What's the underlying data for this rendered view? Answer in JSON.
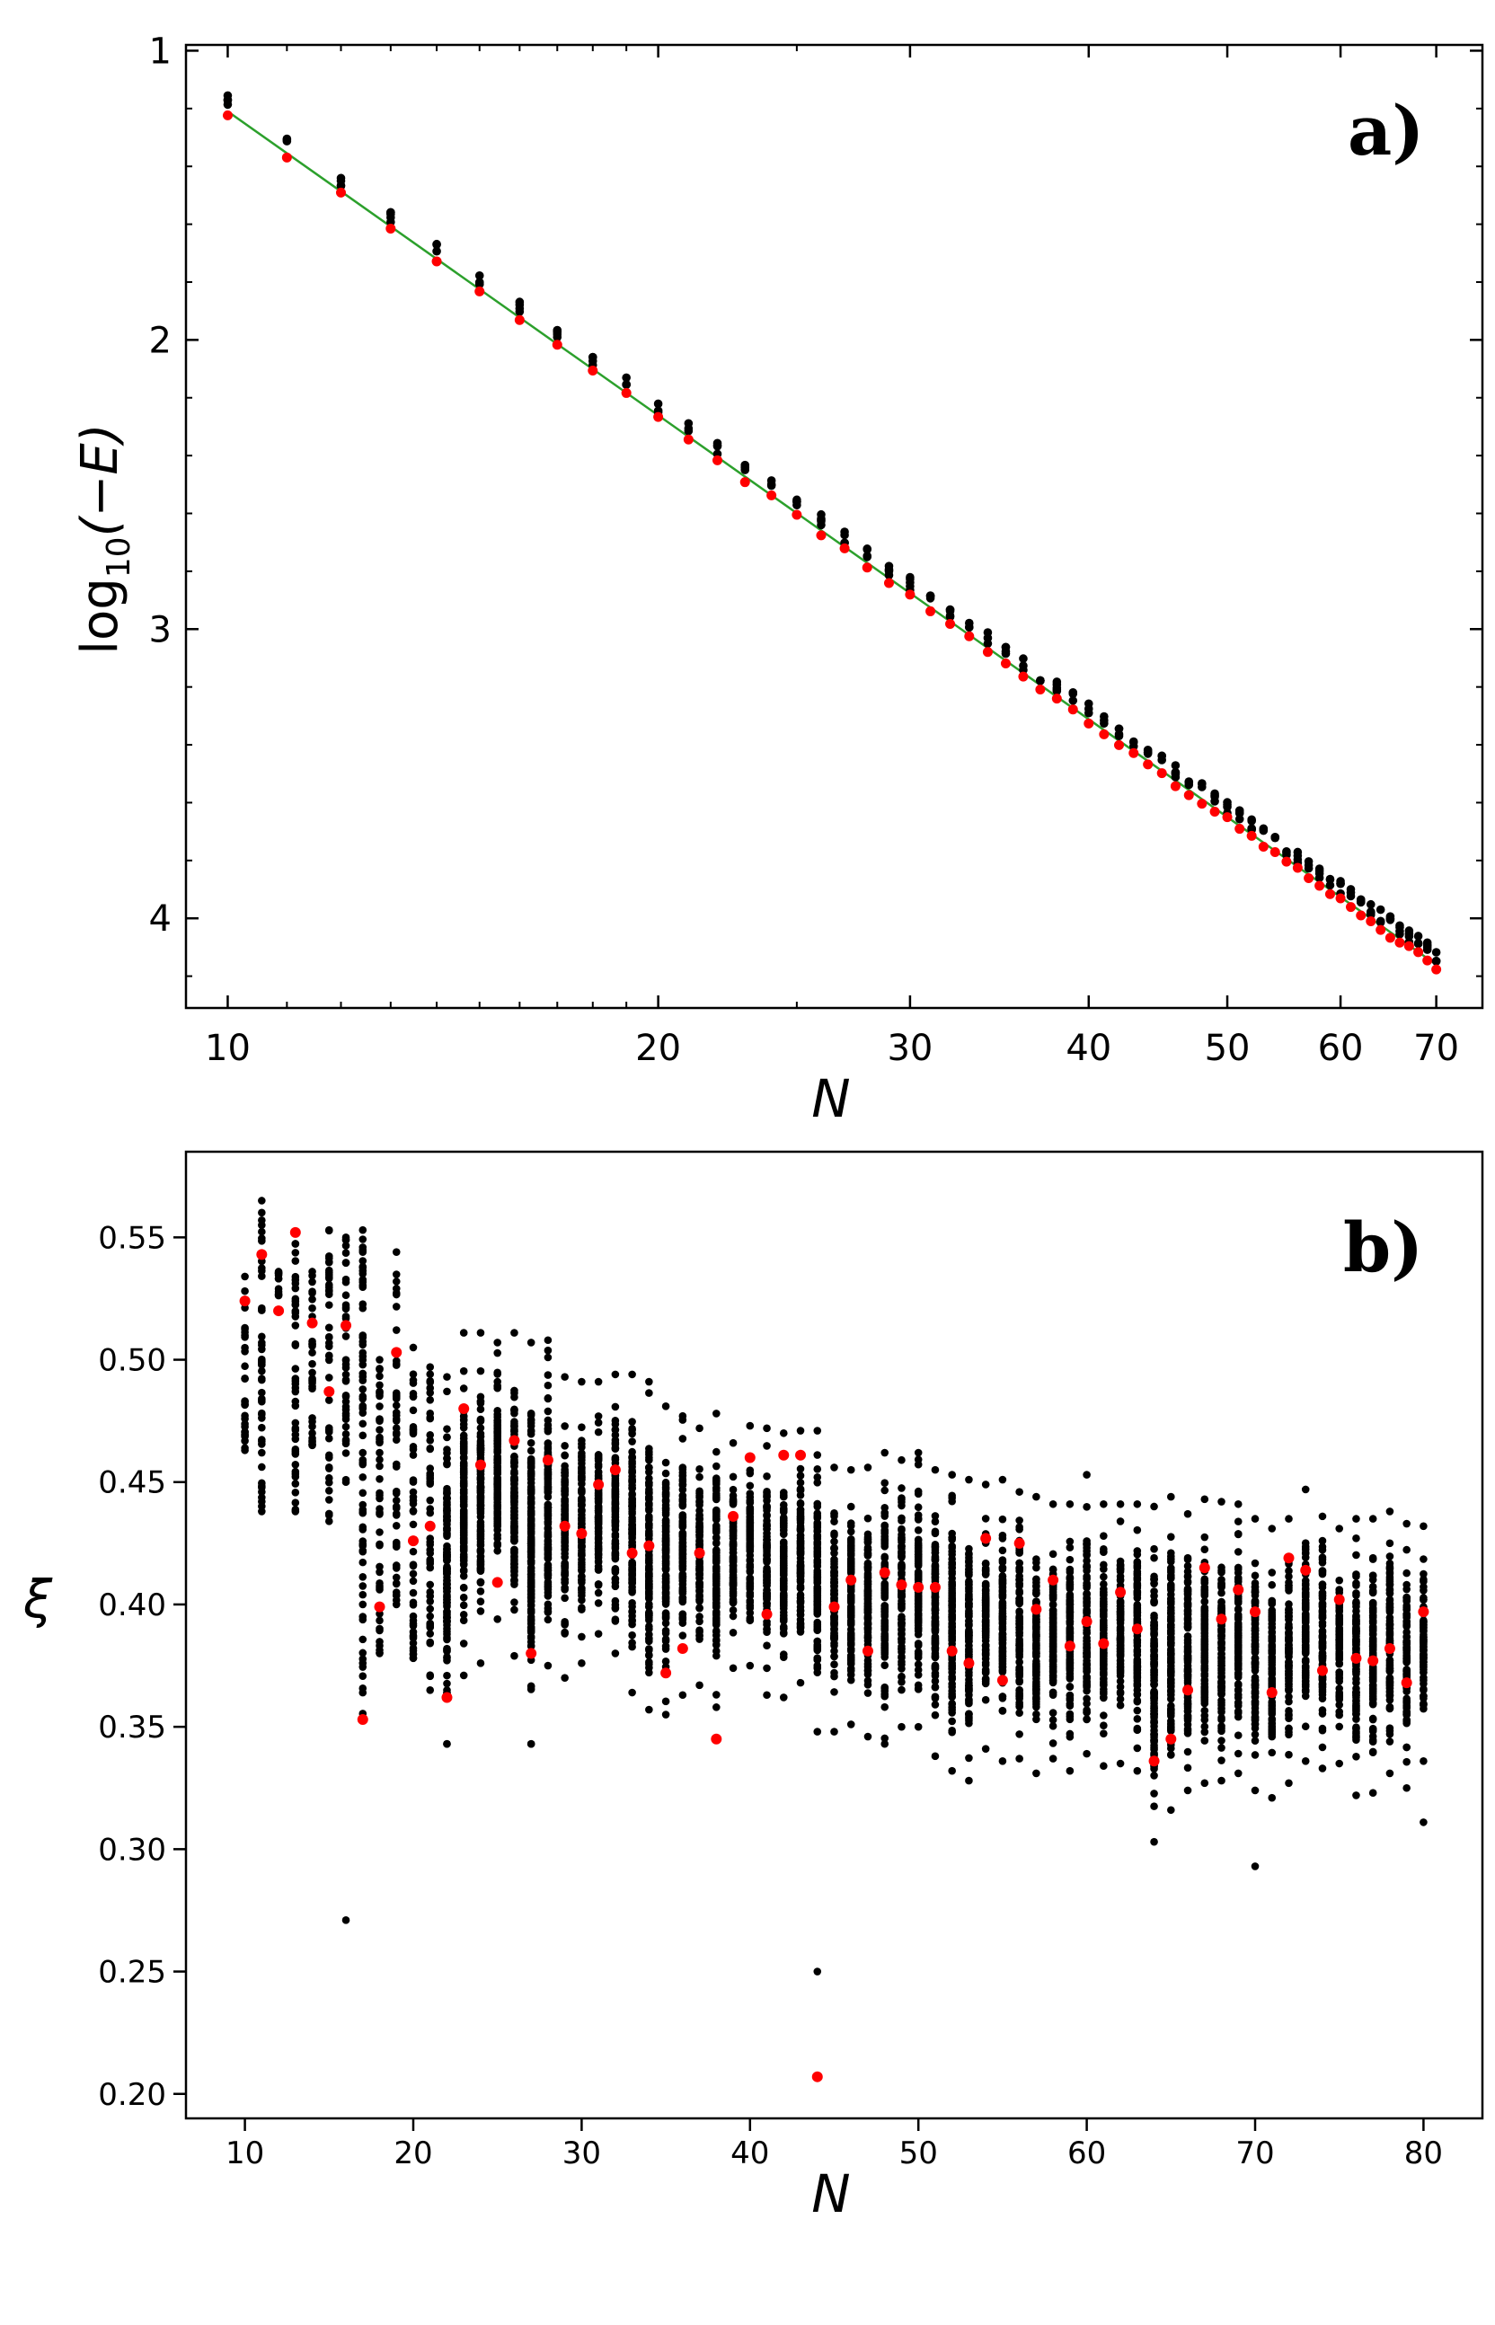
{
  "chart_data": [
    {
      "panel": "a)",
      "type": "scatter",
      "xscale": "log",
      "xlabel": "N",
      "ylabel_main": "log",
      "ylabel_sub": "10",
      "ylabel_rest": "(−E)",
      "xlim": [
        9.35,
        75.4
      ],
      "ylim": [
        4.31,
        0.98
      ],
      "y_inverted": true,
      "xticks": [
        10,
        20,
        30,
        40,
        50,
        60,
        70
      ],
      "xtick_labels": [
        "10",
        "20",
        "30",
        "40",
        "50",
        "60",
        "70"
      ],
      "yticks": [
        1,
        2,
        3,
        4
      ],
      "ytick_labels": [
        "1",
        "2",
        "3",
        "4"
      ],
      "fit_line": {
        "color": "#2ca02c",
        "from": [
          10,
          1.21
        ],
        "to": [
          70,
          4.16
        ]
      },
      "red_series_description": "one red point per N (10 to 70)",
      "black_series_description": "several black points per N clustered just above the red point",
      "point_colors": {
        "red": "#ff0000",
        "black": "#000000"
      }
    },
    {
      "panel": "b)",
      "type": "scatter",
      "xlabel": "N",
      "ylabel": "ξ",
      "xlim": [
        6.5,
        83.5
      ],
      "ylim": [
        0.19,
        0.585
      ],
      "xticks": [
        10,
        20,
        30,
        40,
        50,
        60,
        70,
        80
      ],
      "xtick_labels": [
        "10",
        "20",
        "30",
        "40",
        "50",
        "60",
        "70",
        "80"
      ],
      "yticks": [
        0.2,
        0.25,
        0.3,
        0.35,
        0.4,
        0.45,
        0.5,
        0.55
      ],
      "ytick_labels": [
        "0.20",
        "0.25",
        "0.30",
        "0.35",
        "0.40",
        "0.45",
        "0.50",
        "0.55"
      ],
      "red_points": [
        [
          10,
          0.524
        ],
        [
          11,
          0.543
        ],
        [
          12,
          0.52
        ],
        [
          13,
          0.552
        ],
        [
          14,
          0.515
        ],
        [
          15,
          0.487
        ],
        [
          16,
          0.514
        ],
        [
          17,
          0.353
        ],
        [
          18,
          0.399
        ],
        [
          19,
          0.503
        ],
        [
          20,
          0.426
        ],
        [
          21,
          0.432
        ],
        [
          22,
          0.362
        ],
        [
          23,
          0.48
        ],
        [
          24,
          0.457
        ],
        [
          25,
          0.409
        ],
        [
          26,
          0.467
        ],
        [
          27,
          0.38
        ],
        [
          28,
          0.459
        ],
        [
          29,
          0.432
        ],
        [
          30,
          0.429
        ],
        [
          31,
          0.449
        ],
        [
          32,
          0.455
        ],
        [
          33,
          0.421
        ],
        [
          34,
          0.424
        ],
        [
          35,
          0.372
        ],
        [
          36,
          0.382
        ],
        [
          37,
          0.421
        ],
        [
          38,
          0.345
        ],
        [
          39,
          0.436
        ],
        [
          40,
          0.46
        ],
        [
          41,
          0.396
        ],
        [
          42,
          0.461
        ],
        [
          43,
          0.461
        ],
        [
          44,
          0.207
        ],
        [
          45,
          0.399
        ],
        [
          46,
          0.41
        ],
        [
          47,
          0.381
        ],
        [
          48,
          0.413
        ],
        [
          49,
          0.408
        ],
        [
          50,
          0.407
        ],
        [
          51,
          0.407
        ],
        [
          52,
          0.381
        ],
        [
          53,
          0.376
        ],
        [
          54,
          0.427
        ],
        [
          55,
          0.369
        ],
        [
          56,
          0.425
        ],
        [
          57,
          0.398
        ],
        [
          58,
          0.41
        ],
        [
          59,
          0.383
        ],
        [
          60,
          0.393
        ],
        [
          61,
          0.384
        ],
        [
          62,
          0.405
        ],
        [
          63,
          0.39
        ],
        [
          64,
          0.336
        ],
        [
          65,
          0.345
        ],
        [
          66,
          0.365
        ],
        [
          67,
          0.415
        ],
        [
          68,
          0.394
        ],
        [
          69,
          0.406
        ],
        [
          70,
          0.397
        ],
        [
          71,
          0.364
        ],
        [
          72,
          0.419
        ],
        [
          73,
          0.414
        ],
        [
          74,
          0.373
        ],
        [
          75,
          0.402
        ],
        [
          76,
          0.378
        ],
        [
          77,
          0.377
        ],
        [
          78,
          0.382
        ],
        [
          79,
          0.368
        ],
        [
          80,
          0.397
        ]
      ],
      "black_columns": [
        [
          10,
          0.463,
          0.534
        ],
        [
          11,
          0.438,
          0.565
        ],
        [
          12,
          0.52,
          0.536
        ],
        [
          13,
          0.438,
          0.552
        ],
        [
          14,
          0.465,
          0.536
        ],
        [
          15,
          0.434,
          0.553
        ],
        [
          16,
          0.45,
          0.55
        ],
        [
          17,
          0.353,
          0.553
        ],
        [
          18,
          0.38,
          0.5
        ],
        [
          19,
          0.4,
          0.544
        ],
        [
          20,
          0.378,
          0.505
        ],
        [
          21,
          0.365,
          0.497
        ],
        [
          22,
          0.343,
          0.493
        ],
        [
          23,
          0.371,
          0.511
        ],
        [
          24,
          0.376,
          0.511
        ],
        [
          25,
          0.394,
          0.507
        ],
        [
          26,
          0.379,
          0.511
        ],
        [
          27,
          0.343,
          0.507
        ],
        [
          28,
          0.375,
          0.508
        ],
        [
          29,
          0.37,
          0.493
        ],
        [
          30,
          0.376,
          0.491
        ],
        [
          31,
          0.388,
          0.491
        ],
        [
          32,
          0.38,
          0.494
        ],
        [
          33,
          0.364,
          0.494
        ],
        [
          34,
          0.357,
          0.491
        ],
        [
          35,
          0.355,
          0.481
        ],
        [
          36,
          0.363,
          0.477
        ],
        [
          37,
          0.367,
          0.472
        ],
        [
          38,
          0.358,
          0.478
        ],
        [
          39,
          0.374,
          0.466
        ],
        [
          40,
          0.375,
          0.473
        ],
        [
          41,
          0.363,
          0.472
        ],
        [
          42,
          0.362,
          0.47
        ],
        [
          43,
          0.368,
          0.471
        ],
        [
          44,
          0.348,
          0.471
        ],
        [
          45,
          0.348,
          0.456
        ],
        [
          46,
          0.351,
          0.455
        ],
        [
          47,
          0.346,
          0.456
        ],
        [
          48,
          0.343,
          0.462
        ],
        [
          49,
          0.35,
          0.459
        ],
        [
          50,
          0.35,
          0.462
        ],
        [
          51,
          0.338,
          0.455
        ],
        [
          52,
          0.332,
          0.453
        ],
        [
          53,
          0.328,
          0.451
        ],
        [
          54,
          0.341,
          0.449
        ],
        [
          55,
          0.336,
          0.451
        ],
        [
          56,
          0.337,
          0.446
        ],
        [
          57,
          0.331,
          0.444
        ],
        [
          58,
          0.337,
          0.441
        ],
        [
          59,
          0.332,
          0.441
        ],
        [
          60,
          0.339,
          0.453
        ],
        [
          61,
          0.334,
          0.441
        ],
        [
          62,
          0.335,
          0.441
        ],
        [
          63,
          0.332,
          0.441
        ],
        [
          64,
          0.303,
          0.44
        ],
        [
          65,
          0.316,
          0.444
        ],
        [
          66,
          0.324,
          0.437
        ],
        [
          67,
          0.327,
          0.443
        ],
        [
          68,
          0.328,
          0.442
        ],
        [
          69,
          0.331,
          0.441
        ],
        [
          70,
          0.324,
          0.435
        ],
        [
          71,
          0.321,
          0.431
        ],
        [
          72,
          0.327,
          0.435
        ],
        [
          73,
          0.336,
          0.447
        ],
        [
          74,
          0.333,
          0.436
        ],
        [
          75,
          0.335,
          0.431
        ],
        [
          76,
          0.322,
          0.435
        ],
        [
          77,
          0.323,
          0.435
        ],
        [
          78,
          0.331,
          0.438
        ],
        [
          79,
          0.325,
          0.433
        ],
        [
          80,
          0.336,
          0.432
        ]
      ],
      "black_outliers": [
        [
          16,
          0.271
        ],
        [
          44,
          0.25
        ],
        [
          70,
          0.293
        ],
        [
          80,
          0.311
        ],
        [
          27,
          0.343
        ],
        [
          22,
          0.343
        ]
      ],
      "point_colors": {
        "red": "#ff0000",
        "black": "#000000"
      }
    }
  ]
}
